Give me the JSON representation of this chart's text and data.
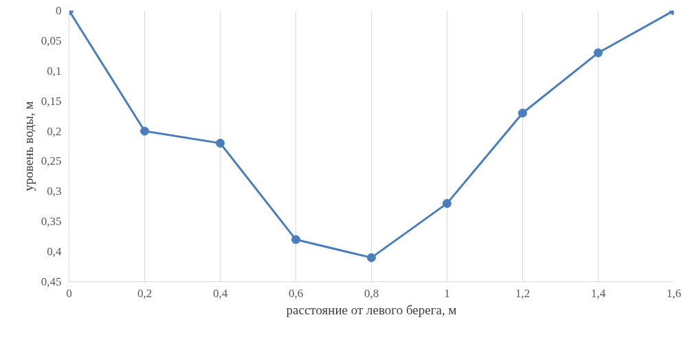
{
  "chart_data": {
    "type": "line",
    "xlabel": "расстояние от левого берега, м",
    "ylabel": "уровень воды, м",
    "x": [
      0,
      0.2,
      0.4,
      0.6,
      0.8,
      1.0,
      1.2,
      1.4,
      1.6
    ],
    "series": [
      {
        "color": "#4a7ebb",
        "values": [
          0,
          0.2,
          0.22,
          0.38,
          0.41,
          0.32,
          0.17,
          0.07,
          0
        ]
      }
    ],
    "xlim": [
      0,
      1.6
    ],
    "ylim": [
      0.45,
      0
    ],
    "xticks": [
      0,
      {
        "value": 0.2,
        "label": "0,2"
      },
      {
        "value": 0.4,
        "label": "0,4"
      },
      {
        "value": 0.6,
        "label": "0,6"
      },
      {
        "value": 0.8,
        "label": "0,8"
      },
      1,
      {
        "value": 1.2,
        "label": "1,2"
      },
      {
        "value": 1.4,
        "label": "1,4"
      },
      {
        "value": 1.6,
        "label": "1,6"
      }
    ],
    "yticks": [
      0,
      {
        "value": 0.05,
        "label": "0,05"
      },
      {
        "value": 0.1,
        "label": "0,1"
      },
      {
        "value": 0.15,
        "label": "0,15"
      },
      {
        "value": 0.2,
        "label": "0,2"
      },
      {
        "value": 0.25,
        "label": "0,25"
      },
      {
        "value": 0.3,
        "label": "0,3"
      },
      {
        "value": 0.35,
        "label": "0,35"
      },
      {
        "value": 0.4,
        "label": "0,4"
      },
      {
        "value": 0.45,
        "label": "0,45"
      }
    ],
    "grid": "x",
    "marker": "circle",
    "line_style": "solid"
  }
}
